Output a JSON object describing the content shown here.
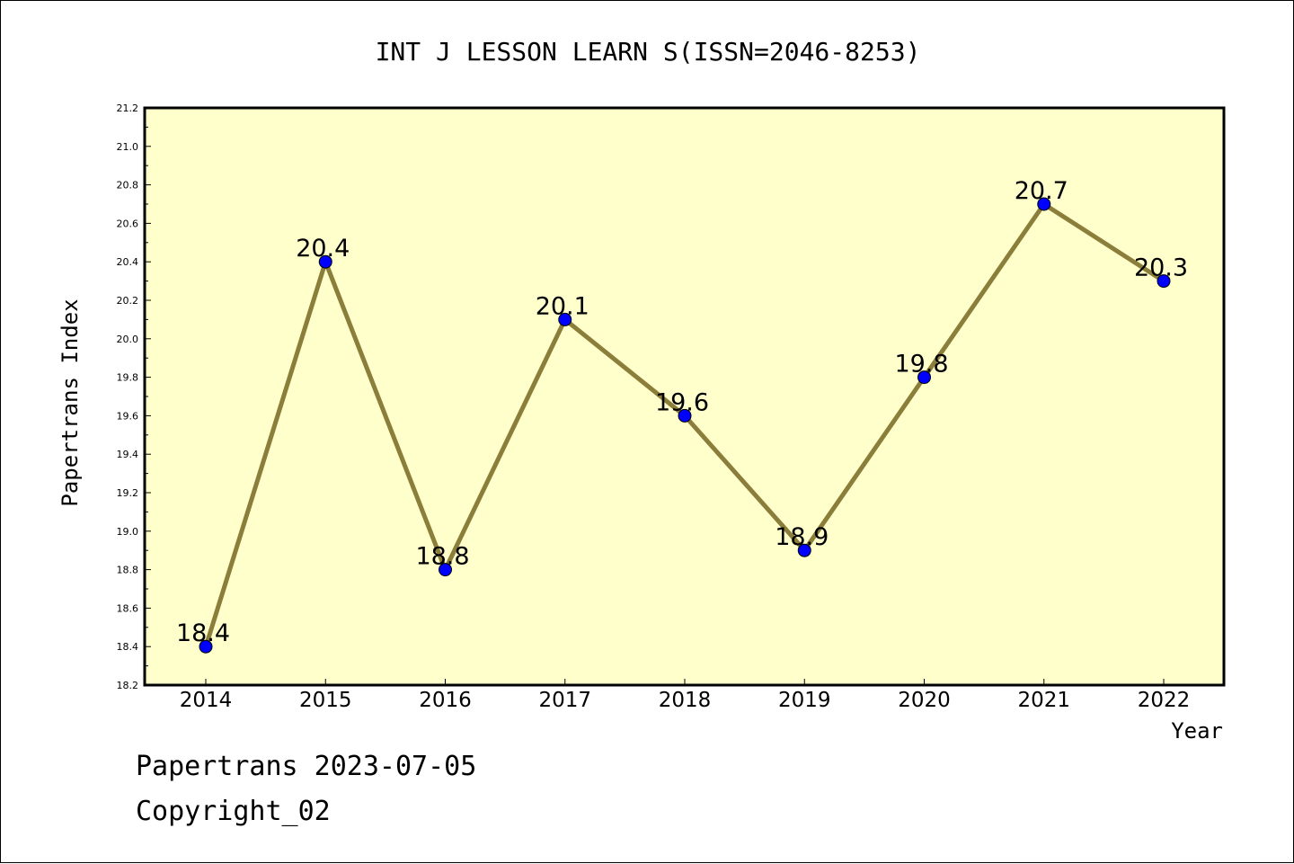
{
  "chart_data": {
    "type": "line",
    "title": "INT J LESSON LEARN S(ISSN=2046-8253)",
    "xlabel": "Year",
    "ylabel": "Papertrans Index",
    "categories": [
      "2014",
      "2015",
      "2016",
      "2017",
      "2018",
      "2019",
      "2020",
      "2021",
      "2022"
    ],
    "values": [
      18.4,
      20.4,
      18.8,
      20.1,
      19.6,
      18.9,
      19.8,
      20.7,
      20.3
    ],
    "data_labels": [
      "18.4",
      "20.4",
      "18.8",
      "20.1",
      "19.6",
      "18.9",
      "19.8",
      "20.7",
      "20.3"
    ],
    "ylim": [
      18.2,
      21.2
    ],
    "yticks": [
      "18.2",
      "18.4",
      "18.6",
      "18.8",
      "19.0",
      "19.2",
      "19.4",
      "19.6",
      "19.8",
      "20.0",
      "20.2",
      "20.4",
      "20.6",
      "20.8",
      "21.0",
      "21.2"
    ],
    "grid": false,
    "legend": "none",
    "colors": {
      "plot_background": "#ffffcc",
      "line": "#8b7d3a",
      "marker": "#0000ff",
      "axes": "#000000"
    }
  },
  "footer": {
    "line1": "Papertrans 2023-07-05",
    "line2": "Copyright_02"
  }
}
